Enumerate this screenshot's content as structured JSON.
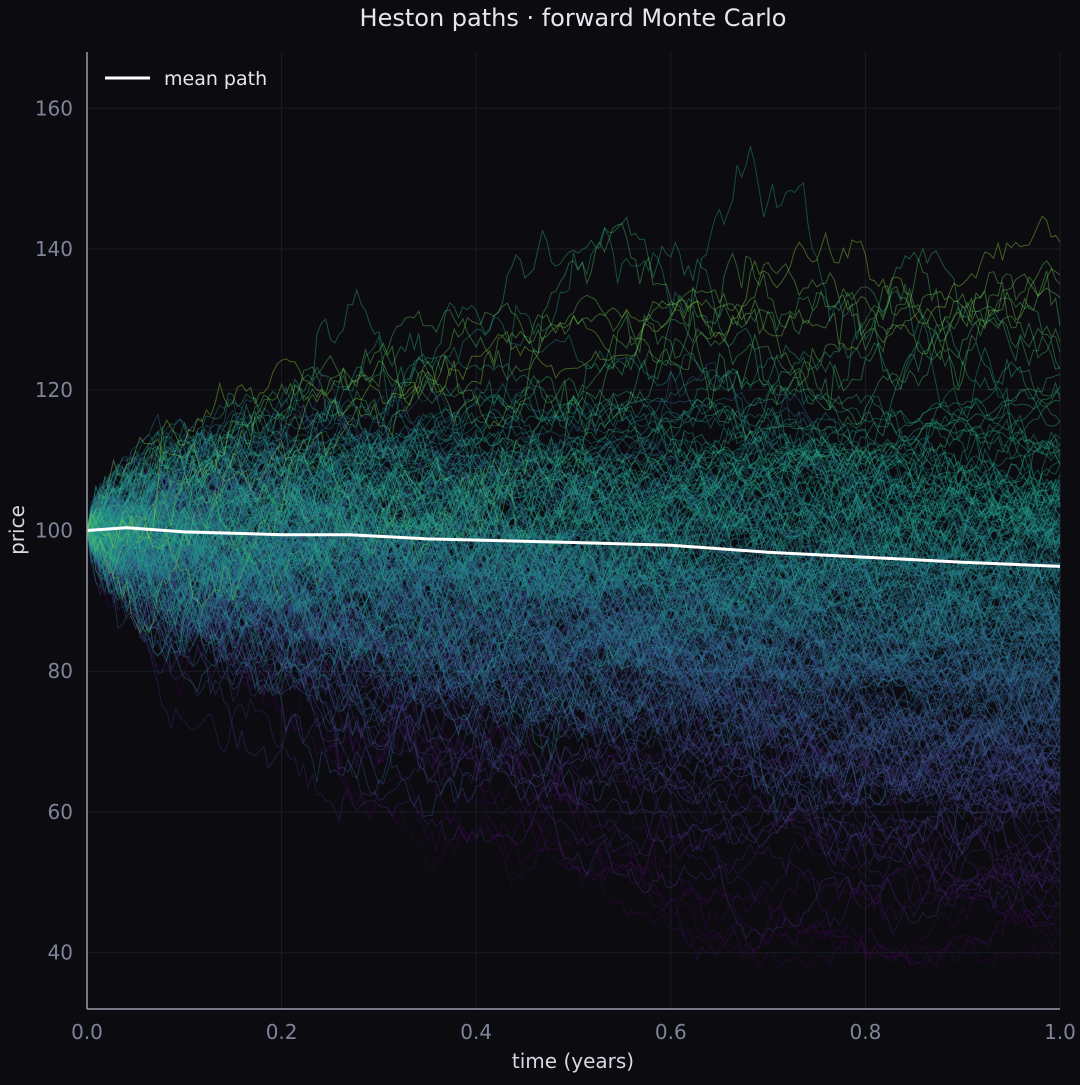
{
  "chart_data": {
    "type": "line",
    "title": "Heston paths · forward Monte Carlo",
    "xlabel": "time (years)",
    "ylabel": "price",
    "xlim": [
      0.0,
      1.0
    ],
    "ylim": [
      32,
      168
    ],
    "x_ticks": [
      0.0,
      0.2,
      0.4,
      0.6,
      0.8,
      1.0
    ],
    "x_tick_labels": [
      "0.0",
      "0.2",
      "0.4",
      "0.6",
      "0.8",
      "1.0"
    ],
    "y_ticks": [
      40,
      60,
      80,
      100,
      120,
      140,
      160
    ],
    "y_tick_labels": [
      "40",
      "60",
      "80",
      "100",
      "120",
      "140",
      "160"
    ],
    "grid": true,
    "legend": {
      "position": "top-left",
      "entries": [
        "mean path"
      ]
    },
    "colormap": "viridis (path color by terminal price)",
    "mean_line_color": "#ffffff",
    "background_color": "#0b0b10",
    "series": [
      {
        "name": "mean path",
        "x": [
          0.0,
          0.04,
          0.1,
          0.2,
          0.27,
          0.35,
          0.5,
          0.6,
          0.7,
          0.8,
          0.9,
          1.0
        ],
        "y": [
          100,
          100.4,
          99.8,
          99.4,
          99.4,
          98.8,
          98.3,
          97.9,
          96.9,
          96.2,
          95.5,
          94.9
        ]
      }
    ],
    "path_ensemble": {
      "count": 320,
      "start_value": 100,
      "t_end": 1.0,
      "terminal_range": [
        40,
        160
      ],
      "max": 161,
      "min": 38
    }
  }
}
